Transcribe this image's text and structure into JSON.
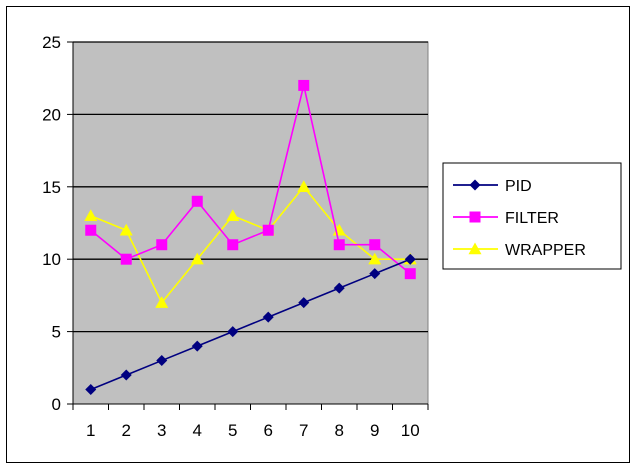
{
  "chart_data": {
    "type": "line",
    "title": "",
    "xlabel": "",
    "ylabel": "",
    "categories": [
      "1",
      "2",
      "3",
      "4",
      "5",
      "6",
      "7",
      "8",
      "9",
      "10"
    ],
    "ylim": [
      0,
      25
    ],
    "yticks": [
      "0",
      "5",
      "10",
      "15",
      "20",
      "25"
    ],
    "grid": "horizontal",
    "plot_background": "#c0c0c0",
    "legend_position": "right",
    "series": [
      {
        "name": "PID",
        "color": "#000080",
        "marker": "diamond",
        "values": [
          1,
          2,
          3,
          4,
          5,
          6,
          7,
          8,
          9,
          10
        ]
      },
      {
        "name": "FILTER",
        "color": "#ff00ff",
        "marker": "square",
        "values": [
          12,
          10,
          11,
          14,
          11,
          12,
          22,
          11,
          11,
          9
        ]
      },
      {
        "name": "WRAPPER",
        "color": "#ffff00",
        "marker": "triangle",
        "values": [
          13,
          12,
          7,
          10,
          13,
          12,
          15,
          12,
          10,
          10
        ]
      }
    ]
  }
}
